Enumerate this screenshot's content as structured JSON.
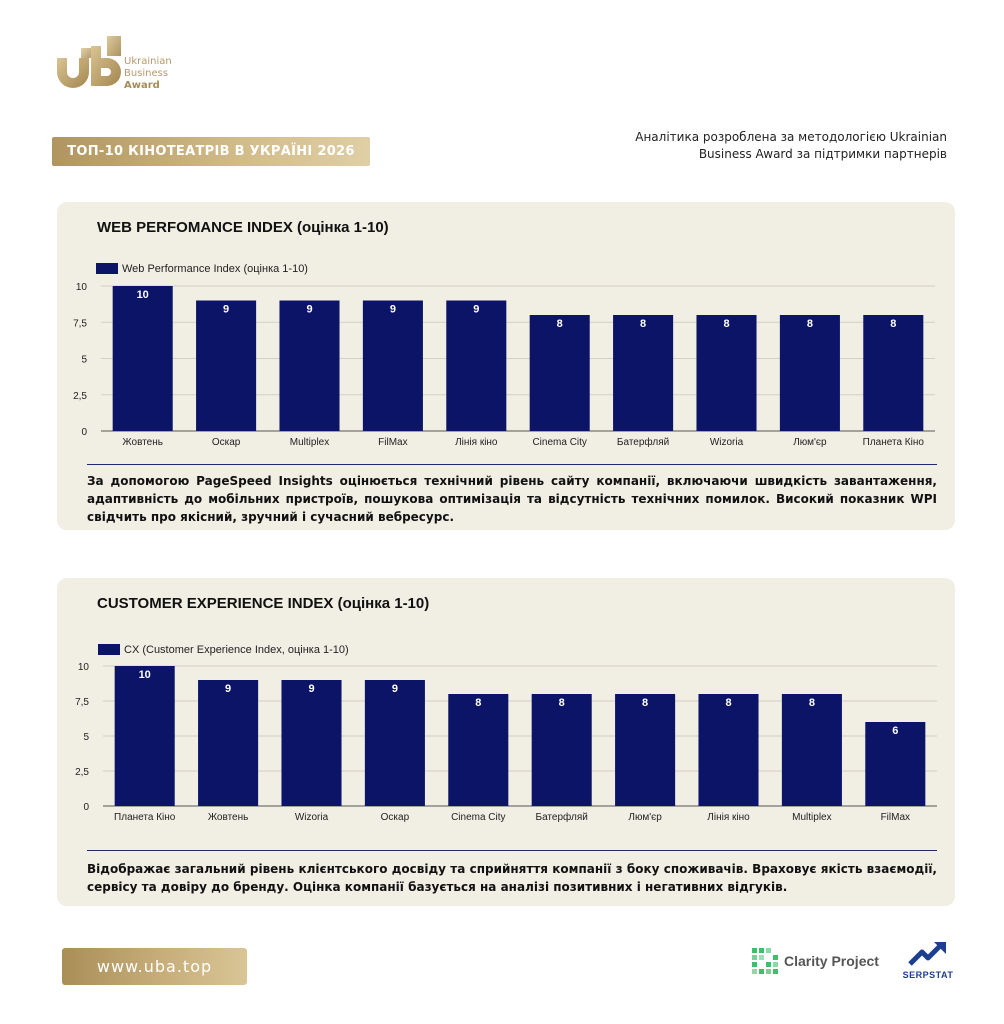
{
  "header": {
    "logo_lines": [
      "Ukrainian",
      "Business",
      "Award"
    ],
    "badge_title": "ТОП-10 КІНОТЕАТРІВ В УКРАЇНІ 2026",
    "note_lines": [
      "Аналітика розроблена за методологією Ukrainian",
      "Business Award за підтримки партнерів"
    ]
  },
  "sections": [
    {
      "title": "WEB PERFOMANCE INDEX (оцінка 1-10)",
      "description": "За допомогою PageSpeed Insights оцінюється технічний рівень сайту компанії, включаючи швидкість завантаження, адаптивність до мобільних пристроїв, пошукова оптимізація та відсутність технічних помилок. Високий показник WPI свідчить про якісний, зручний і сучасний вебресурс."
    },
    {
      "title": "CUSTOMER EXPERIENCE INDEX (оцінка 1-10)",
      "description": "Відображає загальний рівень клієнтського досвіду та сприйняття компанії з боку споживачів. Враховує якість взаємодії, сервісу та довіру до бренду. Оцінка компанії базується на аналізі позитивних і негативних відгуків."
    }
  ],
  "chart_data": [
    {
      "type": "bar",
      "title": "WEB PERFOMANCE INDEX (оцінка 1-10)",
      "categories": [
        "Жовтень",
        "Оскар",
        "Multiplex",
        "FilMax",
        "Лінія кіно",
        "Cinema City",
        "Батерфляй",
        "Wizoria",
        "Люм'єр",
        "Планета Кіно"
      ],
      "series": [
        {
          "name": "Web Performance Index (оцінка 1-10)",
          "values": [
            10,
            9,
            9,
            9,
            9,
            8,
            8,
            8,
            8,
            8
          ]
        }
      ],
      "ylim": [
        0,
        10
      ],
      "yticks": [
        "0",
        "2,5",
        "5",
        "7,5",
        "10"
      ],
      "grid": true,
      "legend": "top-left",
      "color": "#0b1466"
    },
    {
      "type": "bar",
      "title": "CUSTOMER EXPERIENCE INDEX (оцінка 1-10)",
      "categories": [
        "Планета Кіно",
        "Жовтень",
        "Wizoria",
        "Оскар",
        "Cinema City",
        "Батерфляй",
        "Люм'єр",
        "Лінія кіно",
        "Multiplex",
        "FilMax"
      ],
      "series": [
        {
          "name": "CX (Customer Experience Index, оцінка 1-10)",
          "values": [
            10,
            9,
            9,
            9,
            8,
            8,
            8,
            8,
            8,
            6
          ]
        }
      ],
      "ylim": [
        0,
        10
      ],
      "yticks": [
        "0",
        "2,5",
        "5",
        "7,5",
        "10"
      ],
      "grid": true,
      "legend": "top-left",
      "color": "#0b1466"
    }
  ],
  "footer": {
    "url": "www.uba.top",
    "partners": [
      "Clarity Project",
      "SERPSTAT"
    ]
  }
}
